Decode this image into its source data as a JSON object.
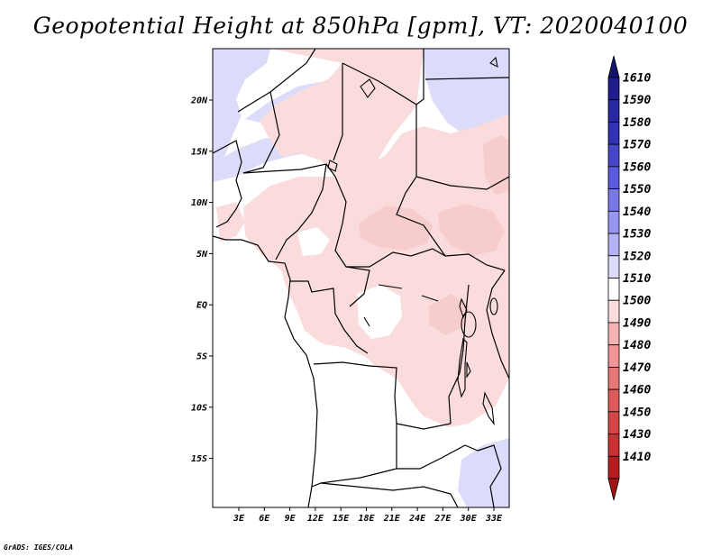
{
  "title": "Geopotential Height at 850hPa [gpm], VT: 2020040100",
  "credit": "GrADS: IGES/COLA",
  "map": {
    "lat_ticks": [
      "20N",
      "15N",
      "10N",
      "5N",
      "EQ",
      "5S",
      "10S",
      "15S"
    ],
    "lon_ticks": [
      "3E",
      "6E",
      "9E",
      "12E",
      "15E",
      "18E",
      "21E",
      "24E",
      "27E",
      "30E",
      "33E"
    ],
    "fill_colors": {
      "high_blue": "#dcdcfa",
      "neutral": "#ffffff",
      "low_pink": "#fadcdc",
      "deeper_pink": "#f7cccc"
    }
  },
  "colorbar": {
    "levels": [
      {
        "label": "1610",
        "color": "#1e1e8c"
      },
      {
        "label": "1590",
        "color": "#2828a0"
      },
      {
        "label": "1580",
        "color": "#3232b4"
      },
      {
        "label": "1570",
        "color": "#4646c8"
      },
      {
        "label": "1560",
        "color": "#5a5adc"
      },
      {
        "label": "1550",
        "color": "#7878e6"
      },
      {
        "label": "1540",
        "color": "#9696f0"
      },
      {
        "label": "1530",
        "color": "#b4b4f5"
      },
      {
        "label": "1520",
        "color": "#dcdcfa"
      },
      {
        "label": "1510",
        "color": "#ffffff"
      },
      {
        "label": "1500",
        "color": "#fadcdc"
      },
      {
        "label": "1490",
        "color": "#f5b4b4"
      },
      {
        "label": "1480",
        "color": "#f09696"
      },
      {
        "label": "1470",
        "color": "#e67878"
      },
      {
        "label": "1460",
        "color": "#dc5a5a"
      },
      {
        "label": "1450",
        "color": "#d24646"
      },
      {
        "label": "1430",
        "color": "#c83232"
      },
      {
        "label": "1410",
        "color": "#b41e1e"
      }
    ],
    "top_cap_color": "#14146e",
    "bottom_cap_color": "#a01414"
  }
}
